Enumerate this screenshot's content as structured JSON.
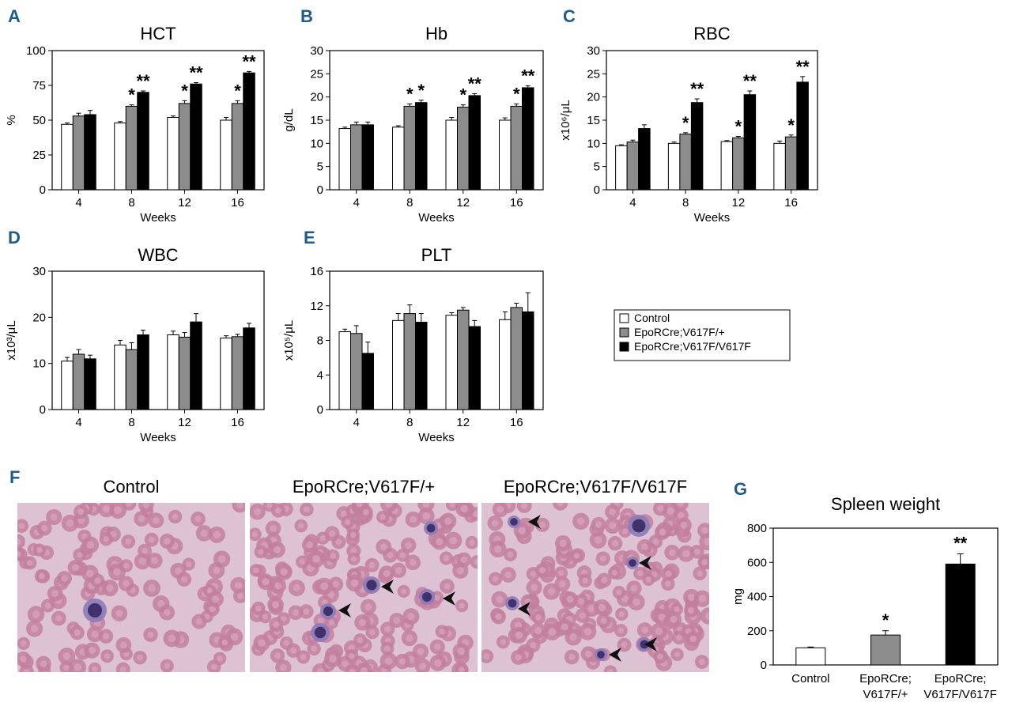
{
  "colors": {
    "control": "#ffffff",
    "het": "#8c8c8c",
    "hom": "#000000",
    "panel_letter": "#1f5c8a",
    "smear_bg": "#dcc2d3",
    "rbc": "#c27f9e",
    "rbc_center": "#d6a3bd",
    "nucleus": "#33235e",
    "reticulocyte": "#8b7bb8"
  },
  "legend": {
    "items": [
      "Control",
      "EpoRCre;V617F/+",
      "EpoRCre;V617F/V617F"
    ]
  },
  "micrographs": {
    "panel": "F",
    "titles": [
      "Control",
      "EpoRCre;V617F/+",
      "EpoRCre;V617F/V617F"
    ]
  },
  "chart_data": [
    {
      "panel": "A",
      "type": "bar",
      "title": "HCT",
      "xlabel": "Weeks",
      "ylabel": "%",
      "categories": [
        "4",
        "8",
        "12",
        "16"
      ],
      "ylim": [
        0,
        100
      ],
      "yticks": [
        0,
        25,
        50,
        75,
        100
      ],
      "series": [
        {
          "name": "Control",
          "values": [
            47,
            48,
            52,
            50
          ],
          "errors": [
            1,
            1,
            1,
            2
          ]
        },
        {
          "name": "EpoRCre;V617F/+",
          "values": [
            53,
            60,
            62,
            62
          ],
          "errors": [
            2,
            1,
            2,
            2
          ]
        },
        {
          "name": "EpoRCre;V617F/V617F",
          "values": [
            54,
            70,
            76,
            84
          ],
          "errors": [
            3,
            1,
            1,
            1
          ]
        }
      ],
      "annotations": [
        {
          "category": "8",
          "series": "EpoRCre;V617F/+",
          "text": "*"
        },
        {
          "category": "8",
          "series": "EpoRCre;V617F/V617F",
          "text": "**"
        },
        {
          "category": "12",
          "series": "EpoRCre;V617F/+",
          "text": "*"
        },
        {
          "category": "12",
          "series": "EpoRCre;V617F/V617F",
          "text": "**"
        },
        {
          "category": "16",
          "series": "EpoRCre;V617F/+",
          "text": "*"
        },
        {
          "category": "16",
          "series": "EpoRCre;V617F/V617F",
          "text": "**"
        }
      ]
    },
    {
      "panel": "B",
      "type": "bar",
      "title": "Hb",
      "xlabel": "Weeks",
      "ylabel": "g/dL",
      "categories": [
        "4",
        "8",
        "12",
        "16"
      ],
      "ylim": [
        0,
        30
      ],
      "yticks": [
        0,
        5,
        10,
        15,
        20,
        25,
        30
      ],
      "series": [
        {
          "name": "Control",
          "values": [
            13.2,
            13.5,
            15,
            15
          ],
          "errors": [
            0.3,
            0.3,
            0.6,
            0.5
          ]
        },
        {
          "name": "EpoRCre;V617F/+",
          "values": [
            14,
            18,
            17.8,
            18
          ],
          "errors": [
            0.6,
            0.5,
            0.5,
            0.5
          ]
        },
        {
          "name": "EpoRCre;V617F/V617F",
          "values": [
            14,
            18.8,
            20.3,
            22
          ],
          "errors": [
            0.6,
            0.5,
            0.4,
            0.4
          ]
        }
      ],
      "annotations": [
        {
          "category": "8",
          "series": "EpoRCre;V617F/+",
          "text": "*"
        },
        {
          "category": "8",
          "series": "EpoRCre;V617F/V617F",
          "text": "*"
        },
        {
          "category": "12",
          "series": "EpoRCre;V617F/+",
          "text": "*"
        },
        {
          "category": "12",
          "series": "EpoRCre;V617F/V617F",
          "text": "**"
        },
        {
          "category": "16",
          "series": "EpoRCre;V617F/+",
          "text": "*"
        },
        {
          "category": "16",
          "series": "EpoRCre;V617F/V617F",
          "text": "**"
        }
      ]
    },
    {
      "panel": "C",
      "type": "bar",
      "title": "RBC",
      "xlabel": "Weeks",
      "ylabel": "x10⁶/μL",
      "categories": [
        "4",
        "8",
        "12",
        "16"
      ],
      "ylim": [
        0,
        30
      ],
      "yticks": [
        0,
        5,
        10,
        15,
        20,
        25,
        30
      ],
      "series": [
        {
          "name": "Control",
          "values": [
            9.5,
            10,
            10.4,
            10
          ],
          "errors": [
            0.2,
            0.3,
            0.2,
            0.5
          ]
        },
        {
          "name": "EpoRCre;V617F/+",
          "values": [
            10.3,
            12,
            11.2,
            11.4
          ],
          "errors": [
            0.4,
            0.3,
            0.3,
            0.4
          ]
        },
        {
          "name": "EpoRCre;V617F/V617F",
          "values": [
            13.2,
            18.8,
            20.5,
            23.2
          ],
          "errors": [
            0.8,
            0.8,
            0.8,
            1.2
          ]
        }
      ],
      "annotations": [
        {
          "category": "8",
          "series": "EpoRCre;V617F/+",
          "text": "*"
        },
        {
          "category": "8",
          "series": "EpoRCre;V617F/V617F",
          "text": "**"
        },
        {
          "category": "12",
          "series": "EpoRCre;V617F/+",
          "text": "*"
        },
        {
          "category": "12",
          "series": "EpoRCre;V617F/V617F",
          "text": "**"
        },
        {
          "category": "16",
          "series": "EpoRCre;V617F/+",
          "text": "*"
        },
        {
          "category": "16",
          "series": "EpoRCre;V617F/V617F",
          "text": "**"
        }
      ]
    },
    {
      "panel": "D",
      "type": "bar",
      "title": "WBC",
      "xlabel": "Weeks",
      "ylabel": "x10³/μL",
      "categories": [
        "4",
        "8",
        "12",
        "16"
      ],
      "ylim": [
        0,
        30
      ],
      "yticks": [
        0,
        10,
        20,
        30
      ],
      "series": [
        {
          "name": "Control",
          "values": [
            10.5,
            14,
            16.2,
            15.5
          ],
          "errors": [
            0.8,
            1,
            0.8,
            0.5
          ]
        },
        {
          "name": "EpoRCre;V617F/+",
          "values": [
            12,
            13,
            15.7,
            15.8
          ],
          "errors": [
            1,
            1.5,
            1,
            0.5
          ]
        },
        {
          "name": "EpoRCre;V617F/V617F",
          "values": [
            11,
            16.2,
            19,
            17.7
          ],
          "errors": [
            0.8,
            1,
            1.8,
            1
          ]
        }
      ],
      "annotations": []
    },
    {
      "panel": "E",
      "type": "bar",
      "title": "PLT",
      "xlabel": "Weeks",
      "ylabel": "x10⁵/μL",
      "categories": [
        "4",
        "8",
        "12",
        "16"
      ],
      "ylim": [
        0,
        16
      ],
      "yticks": [
        0,
        4,
        8,
        12,
        16
      ],
      "series": [
        {
          "name": "Control",
          "values": [
            9,
            10.3,
            10.9,
            10.4
          ],
          "errors": [
            0.3,
            0.8,
            0.3,
            0.9
          ]
        },
        {
          "name": "EpoRCre;V617F/+",
          "values": [
            8.8,
            11.1,
            11.5,
            11.8
          ],
          "errors": [
            0.9,
            1,
            0.3,
            0.5
          ]
        },
        {
          "name": "EpoRCre;V617F/V617F",
          "values": [
            6.5,
            10.1,
            9.6,
            11.3
          ],
          "errors": [
            1.3,
            1,
            0.7,
            2.2
          ]
        }
      ],
      "annotations": []
    },
    {
      "panel": "G",
      "type": "bar",
      "title": "Spleen weight",
      "xlabel": "",
      "ylabel": "mg",
      "categories": [
        "Control",
        "EpoRCre;\nV617F/+",
        "EpoRCre;\nV617F/V617F"
      ],
      "ylim": [
        0,
        800
      ],
      "yticks": [
        0,
        200,
        400,
        600,
        800
      ],
      "series": [
        {
          "name": "",
          "values": [
            100,
            175,
            590
          ],
          "errors": [
            5,
            25,
            60
          ]
        }
      ],
      "annotations": [
        {
          "category": "EpoRCre;\nV617F/+",
          "text": "*"
        },
        {
          "category": "EpoRCre;\nV617F/V617F",
          "text": "**"
        }
      ]
    }
  ]
}
